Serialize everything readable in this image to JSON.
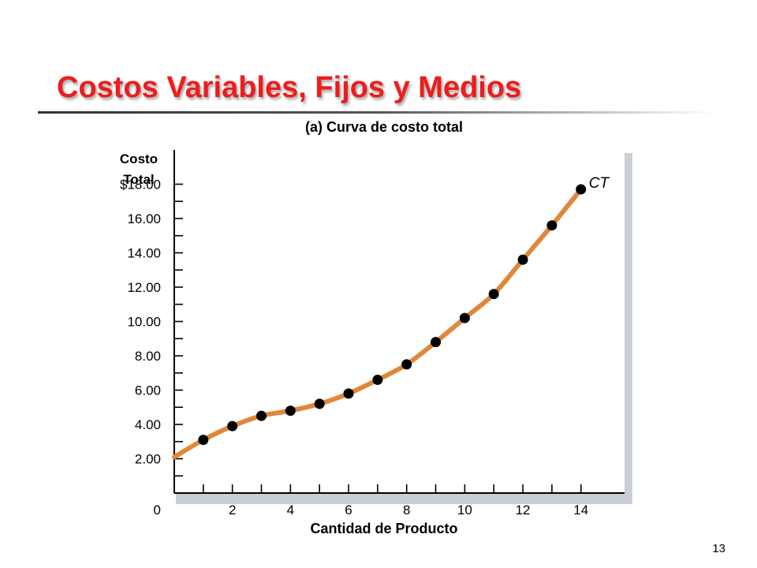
{
  "slide": {
    "title": "Costos Variables, Fijos y Medios",
    "page_number": "13"
  },
  "colors": {
    "title": "#ee1c1c",
    "curve": "#e0883a",
    "points": "#000000",
    "axis": "#000000"
  },
  "chart_data": {
    "type": "line",
    "title": "(a) Curva de costo total",
    "ylabel_lines": [
      "Costo",
      "Total"
    ],
    "xlabel": "Cantidad de Producto",
    "origin_label": "0",
    "xlim": [
      0,
      15.5
    ],
    "ylim": [
      0,
      20
    ],
    "x_ticks": [
      2,
      4,
      6,
      8,
      10,
      12,
      14
    ],
    "x_tick_labels": [
      "2",
      "4",
      "6",
      "8",
      "10",
      "12",
      "14"
    ],
    "x_minor_ticks": [
      1,
      2,
      3,
      4,
      5,
      6,
      7,
      8,
      9,
      10,
      11,
      12,
      13,
      14
    ],
    "y_ticks": [
      2,
      4,
      6,
      8,
      10,
      12,
      14,
      16,
      18
    ],
    "y_tick_labels": [
      "2.00",
      "4.00",
      "6.00",
      "8.00",
      "10.00",
      "12.00",
      "14.00",
      "16.00",
      "18.00"
    ],
    "y_top_prefix": "$",
    "y_minor_ticks": [
      1,
      2,
      3,
      4,
      5,
      6,
      7,
      8,
      9,
      10,
      11,
      12,
      13,
      14,
      15,
      16,
      17,
      18
    ],
    "series": [
      {
        "name": "CT",
        "curve_start": [
          0,
          2.1
        ],
        "x": [
          1,
          2,
          3,
          4,
          5,
          6,
          7,
          8,
          9,
          10,
          11,
          12,
          13,
          14
        ],
        "values": [
          3.1,
          3.9,
          4.5,
          4.8,
          5.2,
          5.8,
          6.6,
          7.5,
          8.8,
          10.2,
          11.6,
          13.6,
          15.6,
          17.7
        ]
      }
    ]
  }
}
